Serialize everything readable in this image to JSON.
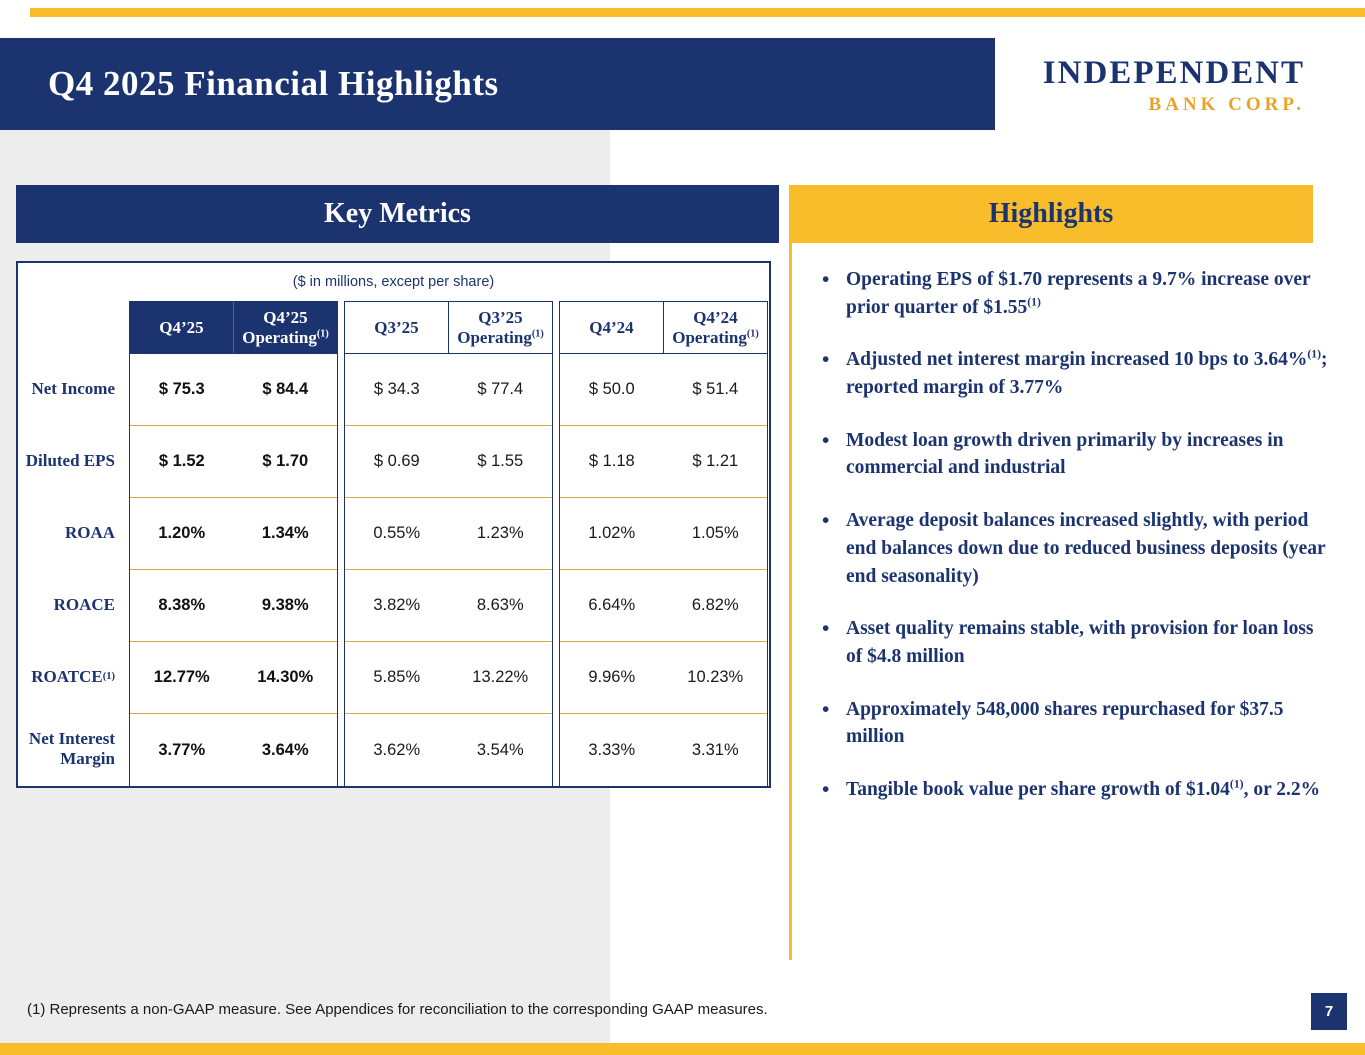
{
  "colors": {
    "navy": "#1b3470",
    "gold": "#f9bc2b",
    "logo_gold": "#e9a426",
    "row_separator_gold": "#d9a93f",
    "panel_gray": "#ededed"
  },
  "slide": {
    "title": "Q4 2025 Financial Highlights",
    "page_number": "7",
    "footnote": "(1) Represents a non-GAAP measure. See Appendices for reconciliation to the corresponding GAAP measures."
  },
  "logo": {
    "line1": "Independent",
    "line2": "BANK CORP."
  },
  "key_metrics": {
    "title": "Key Metrics",
    "subtitle": "($ in millions, except per share)",
    "row_labels": [
      {
        "text": "Net Income",
        "sup": ""
      },
      {
        "text": "Diluted EPS",
        "sup": ""
      },
      {
        "text": "ROAA",
        "sup": ""
      },
      {
        "text": "ROACE",
        "sup": ""
      },
      {
        "text": "ROATCE",
        "sup": "(1)"
      },
      {
        "text": "Net Interest Margin",
        "sup": ""
      }
    ],
    "groups": [
      {
        "name": "Q4'25",
        "headers": [
          {
            "line1": "Q4’25",
            "line2": "",
            "sup": ""
          },
          {
            "line1": "Q4’25",
            "line2": "Operating",
            "sup": "(1)"
          }
        ],
        "rows": [
          [
            "$ 75.3",
            "$ 84.4"
          ],
          [
            "$ 1.52",
            "$ 1.70"
          ],
          [
            "1.20%",
            "1.34%"
          ],
          [
            "8.38%",
            "9.38%"
          ],
          [
            "12.77%",
            "14.30%"
          ],
          [
            "3.77%",
            "3.64%"
          ]
        ]
      },
      {
        "name": "Q3'25",
        "headers": [
          {
            "line1": "Q3’25",
            "line2": "",
            "sup": ""
          },
          {
            "line1": "Q3’25",
            "line2": "Operating",
            "sup": "(1)"
          }
        ],
        "rows": [
          [
            "$ 34.3",
            "$ 77.4"
          ],
          [
            "$ 0.69",
            "$ 1.55"
          ],
          [
            "0.55%",
            "1.23%"
          ],
          [
            "3.82%",
            "8.63%"
          ],
          [
            "5.85%",
            "13.22%"
          ],
          [
            "3.62%",
            "3.54%"
          ]
        ]
      },
      {
        "name": "Q4'24",
        "headers": [
          {
            "line1": "Q4’24",
            "line2": "",
            "sup": ""
          },
          {
            "line1": "Q4’24",
            "line2": "Operating",
            "sup": "(1)"
          }
        ],
        "rows": [
          [
            "$ 50.0",
            "$ 51.4"
          ],
          [
            "$ 1.18",
            "$ 1.21"
          ],
          [
            "1.02%",
            "1.05%"
          ],
          [
            "6.64%",
            "6.82%"
          ],
          [
            "9.96%",
            "10.23%"
          ],
          [
            "3.33%",
            "3.31%"
          ]
        ]
      }
    ]
  },
  "highlights": {
    "title": "Highlights",
    "bullets": [
      {
        "pre": "Operating EPS of $1.70 represents a 9.7% increase over prior quarter of $1.55",
        "sup": "(1)",
        "post": ""
      },
      {
        "pre": "Adjusted net interest margin increased 10 bps to 3.64%",
        "sup": "(1)",
        "post": "; reported margin of 3.77%"
      },
      {
        "pre": "Modest loan growth driven primarily by increases in commercial and industrial",
        "sup": "",
        "post": ""
      },
      {
        "pre": "Average deposit balances increased slightly, with period end balances down due to reduced business deposits (year end seasonality)",
        "sup": "",
        "post": ""
      },
      {
        "pre": "Asset quality remains stable, with provision for loan loss of $4.8 million",
        "sup": "",
        "post": ""
      },
      {
        "pre": "Approximately 548,000 shares repurchased for $37.5 million",
        "sup": "",
        "post": ""
      },
      {
        "pre": "Tangible book value per share growth of $1.04",
        "sup": "(1)",
        "post": ", or 2.2%"
      }
    ]
  }
}
